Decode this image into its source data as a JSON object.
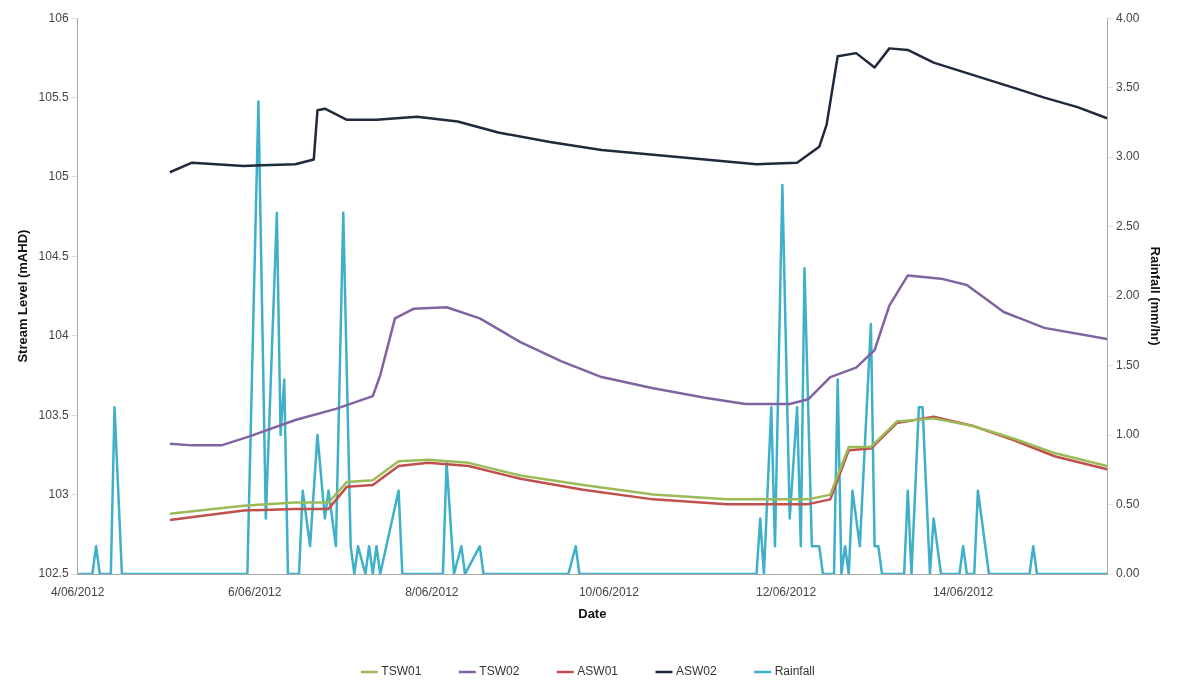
{
  "chart_data": {
    "type": "line",
    "xlabel": "Date",
    "ylabel": "Stream Level (mAHD)",
    "y2label": "Rainfall (mm/hr)",
    "xlim": [
      "2012-06-04",
      "2012-06-15T15:00"
    ],
    "xticks": [
      {
        "value": "2012-06-04",
        "label": "4/06/2012"
      },
      {
        "value": "2012-06-06",
        "label": "6/06/2012"
      },
      {
        "value": "2012-06-08",
        "label": "8/06/2012"
      },
      {
        "value": "2012-06-10",
        "label": "10/06/2012"
      },
      {
        "value": "2012-06-12",
        "label": "12/06/2012"
      },
      {
        "value": "2012-06-14",
        "label": "14/06/2012"
      }
    ],
    "ylim": [
      102.5,
      106
    ],
    "yticks": [
      102.5,
      103,
      103.5,
      104,
      104.5,
      105,
      105.5,
      106
    ],
    "y2lim": [
      0,
      4
    ],
    "y2ticks": [
      {
        "value": 0,
        "label": "0.00"
      },
      {
        "value": 0.5,
        "label": "0.50"
      },
      {
        "value": 1,
        "label": "1.00"
      },
      {
        "value": 1.5,
        "label": "1.50"
      },
      {
        "value": 2,
        "label": "2.00"
      },
      {
        "value": 2.5,
        "label": "2.50"
      },
      {
        "value": 3,
        "label": "3.00"
      },
      {
        "value": 3.5,
        "label": "3.50"
      },
      {
        "value": 4,
        "label": "4.00"
      }
    ],
    "grid": false,
    "legend": "bottom",
    "line_style": "solid",
    "series": [
      {
        "name": "TSW01",
        "color": "#9bbb59",
        "x": [
          "2012-06-05T01:00",
          "2012-06-05T21:00",
          "2012-06-06T11:00",
          "2012-06-06T20:00",
          "2012-06-07T01:00",
          "2012-06-07T08:00",
          "2012-06-07T15:00",
          "2012-06-07T23:00",
          "2012-06-08T10:00",
          "2012-06-09T00:00",
          "2012-06-09T17:00",
          "2012-06-10T12:00",
          "2012-06-11T08:00",
          "2012-06-12T06:00",
          "2012-06-12T12:00",
          "2012-06-12T17:00",
          "2012-06-12T23:00",
          "2012-06-13T06:00",
          "2012-06-13T16:00",
          "2012-06-14T03:00",
          "2012-06-14T14:00",
          "2012-06-15T01:00",
          "2012-06-15T15:00"
        ],
        "values": [
          102.88,
          102.93,
          102.95,
          102.95,
          103.08,
          103.09,
          103.21,
          103.22,
          103.2,
          103.12,
          103.06,
          103.0,
          102.97,
          102.97,
          103.0,
          103.3,
          103.3,
          103.46,
          103.48,
          103.43,
          103.35,
          103.26,
          103.18
        ]
      },
      {
        "name": "TSW02",
        "color": "#8064a2",
        "x": [
          "2012-06-05T01:00",
          "2012-06-05T07:00",
          "2012-06-05T15:00",
          "2012-06-05T23:00",
          "2012-06-06T11:00",
          "2012-06-06T22:00",
          "2012-06-07T08:00",
          "2012-06-07T10:00",
          "2012-06-07T14:00",
          "2012-06-07T19:00",
          "2012-06-08T04:00",
          "2012-06-08T13:00",
          "2012-06-09T00:00",
          "2012-06-09T11:00",
          "2012-06-09T22:00",
          "2012-06-10T12:00",
          "2012-06-11T02:00",
          "2012-06-11T13:00",
          "2012-06-12T01:00",
          "2012-06-12T06:00",
          "2012-06-12T12:00",
          "2012-06-12T19:00",
          "2012-06-13T00:00",
          "2012-06-13T04:00",
          "2012-06-13T09:00",
          "2012-06-13T18:00",
          "2012-06-14T01:00",
          "2012-06-14T11:00",
          "2012-06-14T22:00",
          "2012-06-15T15:00"
        ],
        "values": [
          103.32,
          103.31,
          103.31,
          103.37,
          103.47,
          103.54,
          103.62,
          103.75,
          104.11,
          104.17,
          104.18,
          104.11,
          103.96,
          103.84,
          103.74,
          103.67,
          103.61,
          103.57,
          103.57,
          103.6,
          103.74,
          103.8,
          103.91,
          104.19,
          104.38,
          104.36,
          104.32,
          104.15,
          104.05,
          103.98
        ]
      },
      {
        "name": "ASW01",
        "color": "#c0504d",
        "x": [
          "2012-06-05T01:00",
          "2012-06-05T21:00",
          "2012-06-06T11:00",
          "2012-06-06T20:00",
          "2012-06-07T01:00",
          "2012-06-07T08:00",
          "2012-06-07T15:00",
          "2012-06-07T23:00",
          "2012-06-08T10:00",
          "2012-06-09T00:00",
          "2012-06-09T17:00",
          "2012-06-10T12:00",
          "2012-06-11T08:00",
          "2012-06-12T06:00",
          "2012-06-12T12:00",
          "2012-06-12T17:00",
          "2012-06-12T23:00",
          "2012-06-13T06:00",
          "2012-06-13T16:00",
          "2012-06-14T03:00",
          "2012-06-14T14:00",
          "2012-06-15T01:00",
          "2012-06-15T15:00"
        ],
        "values": [
          102.84,
          102.9,
          102.91,
          102.91,
          103.05,
          103.06,
          103.18,
          103.2,
          103.18,
          103.1,
          103.03,
          102.97,
          102.94,
          102.94,
          102.97,
          103.28,
          103.29,
          103.45,
          103.49,
          103.43,
          103.34,
          103.24,
          103.16
        ]
      },
      {
        "name": "ASW02",
        "color": "#1f2a3c",
        "x": [
          "2012-06-05T01:00",
          "2012-06-05T07:00",
          "2012-06-05T21:00",
          "2012-06-06T11:00",
          "2012-06-06T16:00",
          "2012-06-06T17:00",
          "2012-06-06T19:00",
          "2012-06-07T01:00",
          "2012-06-07T09:00",
          "2012-06-07T20:00",
          "2012-06-08T07:00",
          "2012-06-08T18:00",
          "2012-06-09T08:00",
          "2012-06-09T22:00",
          "2012-06-10T12:00",
          "2012-06-11T02:00",
          "2012-06-11T16:00",
          "2012-06-12T03:00",
          "2012-06-12T09:00",
          "2012-06-12T11:00",
          "2012-06-12T14:00",
          "2012-06-12T19:00",
          "2012-06-13T00:00",
          "2012-06-13T04:00",
          "2012-06-13T09:00",
          "2012-06-13T16:00",
          "2012-06-14T03:00",
          "2012-06-14T14:00",
          "2012-06-14T22:00",
          "2012-06-15T07:00",
          "2012-06-15T15:00"
        ],
        "values": [
          105.03,
          105.09,
          105.07,
          105.08,
          105.11,
          105.42,
          105.43,
          105.36,
          105.36,
          105.38,
          105.35,
          105.28,
          105.22,
          105.17,
          105.14,
          105.11,
          105.08,
          105.09,
          105.19,
          105.33,
          105.76,
          105.78,
          105.69,
          105.81,
          105.8,
          105.72,
          105.64,
          105.56,
          105.5,
          105.44,
          105.37
        ]
      },
      {
        "name": "Rainfall",
        "color": "#3fb0c9",
        "axis": "y2",
        "x": [
          "2012-06-04T00:00",
          "2012-06-04T04:00",
          "2012-06-04T05:00",
          "2012-06-04T06:00",
          "2012-06-04T09:00",
          "2012-06-04T10:00",
          "2012-06-04T12:00",
          "2012-06-05T22:00",
          "2012-06-06T01:00",
          "2012-06-06T03:00",
          "2012-06-06T06:00",
          "2012-06-06T07:00",
          "2012-06-06T08:00",
          "2012-06-06T09:00",
          "2012-06-06T12:00",
          "2012-06-06T13:00",
          "2012-06-06T15:00",
          "2012-06-06T17:00",
          "2012-06-06T19:00",
          "2012-06-06T20:00",
          "2012-06-06T22:00",
          "2012-06-07T00:00",
          "2012-06-07T02:00",
          "2012-06-07T03:00",
          "2012-06-07T04:00",
          "2012-06-07T06:00",
          "2012-06-07T07:00",
          "2012-06-07T08:00",
          "2012-06-07T09:00",
          "2012-06-07T10:00",
          "2012-06-07T15:00",
          "2012-06-07T16:00",
          "2012-06-08T03:00",
          "2012-06-08T04:00",
          "2012-06-08T06:00",
          "2012-06-08T08:00",
          "2012-06-08T09:00",
          "2012-06-08T13:00",
          "2012-06-08T14:00",
          "2012-06-09T13:00",
          "2012-06-09T15:00",
          "2012-06-09T16:00",
          "2012-06-11T16:00",
          "2012-06-11T17:00",
          "2012-06-11T18:00",
          "2012-06-11T20:00",
          "2012-06-11T21:00",
          "2012-06-11T23:00",
          "2012-06-12T01:00",
          "2012-06-12T03:00",
          "2012-06-12T04:00",
          "2012-06-12T05:00",
          "2012-06-12T07:00",
          "2012-06-12T09:00",
          "2012-06-12T10:00",
          "2012-06-12T13:00",
          "2012-06-12T14:00",
          "2012-06-12T15:00",
          "2012-06-12T16:00",
          "2012-06-12T17:00",
          "2012-06-12T18:00",
          "2012-06-12T20:00",
          "2012-06-12T23:00",
          "2012-06-13T00:00",
          "2012-06-13T01:00",
          "2012-06-13T02:00",
          "2012-06-13T08:00",
          "2012-06-13T09:00",
          "2012-06-13T10:00",
          "2012-06-13T12:00",
          "2012-06-13T13:00",
          "2012-06-13T15:00",
          "2012-06-13T16:00",
          "2012-06-13T18:00",
          "2012-06-13T23:00",
          "2012-06-14T00:00",
          "2012-06-14T01:00",
          "2012-06-14T03:00",
          "2012-06-14T04:00",
          "2012-06-14T07:00",
          "2012-06-14T18:00",
          "2012-06-14T19:00",
          "2012-06-14T20:00",
          "2012-06-15T15:00"
        ],
        "values": [
          0,
          0,
          0.2,
          0,
          0,
          1.2,
          0,
          0,
          3.4,
          0.4,
          2.6,
          1.0,
          1.4,
          0,
          0,
          0.6,
          0.2,
          1.0,
          0.4,
          0.6,
          0.2,
          2.6,
          0.2,
          0,
          0.2,
          0,
          0.2,
          0,
          0.2,
          0,
          0.6,
          0,
          0,
          0.8,
          0,
          0.2,
          0,
          0.2,
          0,
          0,
          0.2,
          0,
          0,
          0.4,
          0,
          1.2,
          0.2,
          2.8,
          0.4,
          1.2,
          0.2,
          2.2,
          0.2,
          0.2,
          0,
          0,
          1.4,
          0,
          0.2,
          0,
          0.6,
          0.2,
          1.8,
          0.2,
          0.2,
          0,
          0,
          0.6,
          0,
          1.2,
          1.2,
          0,
          0.4,
          0,
          0,
          0.2,
          0,
          0,
          0.6,
          0,
          0,
          0.2,
          0,
          0
        ]
      }
    ]
  }
}
